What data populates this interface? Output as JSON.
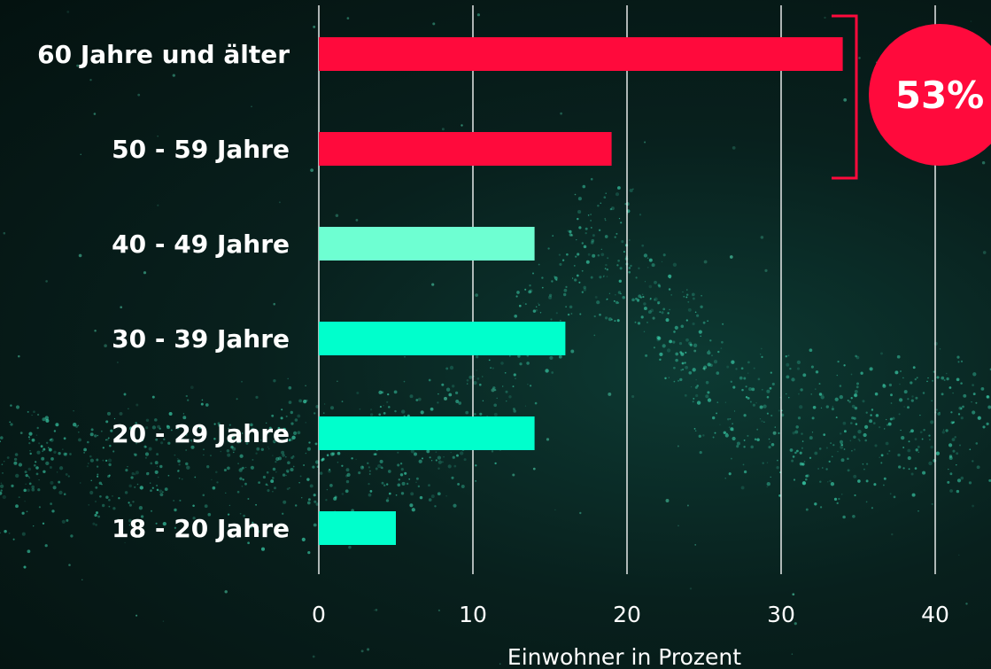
{
  "chart_data": {
    "type": "bar",
    "orientation": "horizontal",
    "categories": [
      "60 Jahre und älter",
      "50 - 59 Jahre",
      "40 - 49 Jahre",
      "30 - 39 Jahre",
      "20 - 29 Jahre",
      "18 - 20 Jahre"
    ],
    "values": [
      34,
      19,
      14,
      16,
      14,
      5
    ],
    "bar_colors": [
      "#ff0a3c",
      "#ff0a3c",
      "#6effd2",
      "#00ffcc",
      "#00ffcc",
      "#00ffcc"
    ],
    "xlabel": "Einwohner in Prozent",
    "xlim": [
      0,
      40
    ],
    "xticks": [
      0,
      10,
      20,
      30,
      40
    ],
    "grid": "vertical",
    "annotation": {
      "text": "53%",
      "color": "#ff0a3c",
      "brackets_categories": [
        "60 Jahre und älter",
        "50 - 59 Jahre"
      ]
    }
  },
  "colors": {
    "background": "#08201d",
    "gridline": "#ffffff",
    "text": "#ffffff"
  }
}
